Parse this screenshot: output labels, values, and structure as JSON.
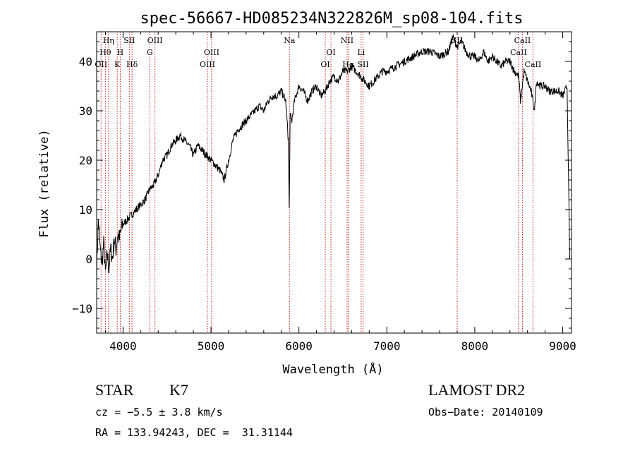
{
  "chart_data": {
    "type": "line",
    "title": "spec-56667-HD085234N322826M_sp08-104.fits",
    "xlabel": "Wavelength (Å)",
    "ylabel": "Flux (relative)",
    "xlim": [
      3700,
      9100
    ],
    "ylim": [
      -15,
      46
    ],
    "xticks": [
      4000,
      5000,
      6000,
      7000,
      8000,
      9000
    ],
    "yticks": [
      -10,
      0,
      10,
      20,
      30,
      40
    ],
    "grid": false,
    "series": [
      {
        "x": [
          3700,
          3720,
          3740,
          3760,
          3780,
          3800,
          3820,
          3840,
          3860,
          3880,
          3900,
          3920,
          3940,
          3960,
          3980,
          4000,
          4050,
          4100,
          4150,
          4200,
          4250,
          4300,
          4350,
          4400,
          4450,
          4500,
          4550,
          4600,
          4650,
          4700,
          4750,
          4800,
          4850,
          4900,
          4950,
          5000,
          5050,
          5100,
          5150,
          5200,
          5250,
          5300,
          5350,
          5400,
          5450,
          5500,
          5550,
          5600,
          5650,
          5700,
          5750,
          5800,
          5850,
          5880,
          5890,
          5900,
          5920,
          5950,
          6000,
          6050,
          6100,
          6150,
          6200,
          6250,
          6300,
          6350,
          6400,
          6450,
          6500,
          6550,
          6600,
          6650,
          6700,
          6750,
          6800,
          6850,
          6900,
          6950,
          7000,
          7100,
          7200,
          7300,
          7400,
          7500,
          7600,
          7700,
          7750,
          7800,
          7850,
          7900,
          7950,
          8000,
          8050,
          8100,
          8150,
          8200,
          8250,
          8300,
          8350,
          8400,
          8450,
          8500,
          8520,
          8560,
          8600,
          8640,
          8680,
          8700,
          8750,
          8800,
          8850,
          8900,
          8950,
          9000,
          9050,
          9080
        ],
        "values": [
          -2,
          8,
          2,
          -1,
          3,
          -3,
          1,
          -2,
          2,
          0,
          4,
          2,
          5,
          4,
          6,
          7,
          8,
          9,
          10,
          11,
          12,
          14,
          15,
          17,
          20,
          21,
          23,
          24,
          25,
          24,
          23,
          21,
          23,
          22,
          21,
          20,
          19,
          18,
          16,
          20,
          24,
          26,
          27,
          28,
          29,
          30,
          31,
          30,
          32,
          33,
          33,
          34,
          32,
          24,
          10,
          29,
          28,
          32,
          35,
          34,
          32,
          34,
          35,
          33,
          34,
          36,
          37,
          36,
          38,
          38,
          39,
          38,
          37,
          36,
          35,
          36,
          37,
          38,
          38,
          39,
          40,
          41,
          42,
          42,
          41,
          42,
          45,
          43,
          44,
          42,
          41,
          41,
          40,
          42,
          40,
          41,
          40,
          39,
          40,
          40,
          38,
          37,
          32,
          38,
          36,
          34,
          30,
          36,
          35,
          35,
          34,
          34,
          34,
          33,
          35,
          0
        ]
      }
    ],
    "line_labels": [
      {
        "x": 3750,
        "label": "OII",
        "tier": 3
      },
      {
        "x": 3799,
        "label": "Hθ",
        "tier": 2
      },
      {
        "x": 3835,
        "label": "Hη",
        "tier": 1
      },
      {
        "x": 3934,
        "label": "K",
        "tier": 3
      },
      {
        "x": 3968,
        "label": "H",
        "tier": 2
      },
      {
        "x": 4072,
        "label": "SII",
        "tier": 1
      },
      {
        "x": 4102,
        "label": "Hδ",
        "tier": 3
      },
      {
        "x": 4304,
        "label": "G",
        "tier": 2
      },
      {
        "x": 4363,
        "label": "OIII",
        "tier": 1
      },
      {
        "x": 4959,
        "label": "OIII",
        "tier": 3
      },
      {
        "x": 5007,
        "label": "OIII",
        "tier": 2
      },
      {
        "x": 5893,
        "label": "Na",
        "tier": 1
      },
      {
        "x": 6300,
        "label": "OI",
        "tier": 3
      },
      {
        "x": 6364,
        "label": "OI",
        "tier": 2
      },
      {
        "x": 6548,
        "label": "NII",
        "tier": 1
      },
      {
        "x": 6563,
        "label": "Hα",
        "tier": 3
      },
      {
        "x": 6708,
        "label": "Li",
        "tier": 2
      },
      {
        "x": 6730,
        "label": "SII",
        "tier": 3
      },
      {
        "x": 7800,
        "label": "SII",
        "tier": 1
      },
      {
        "x": 8498,
        "label": "CaII",
        "tier": 2
      },
      {
        "x": 8542,
        "label": "CaII",
        "tier": 1
      },
      {
        "x": 8662,
        "label": "CaII",
        "tier": 3
      }
    ]
  },
  "info": {
    "class_label": "STAR",
    "subclass": "K7",
    "survey": "LAMOST DR2",
    "redshift": "cz = −5.5 ± 3.8 km/s",
    "obs_date": "Obs−Date: 20140109",
    "coords": "RA = 133.94243, DEC =  31.31144"
  }
}
